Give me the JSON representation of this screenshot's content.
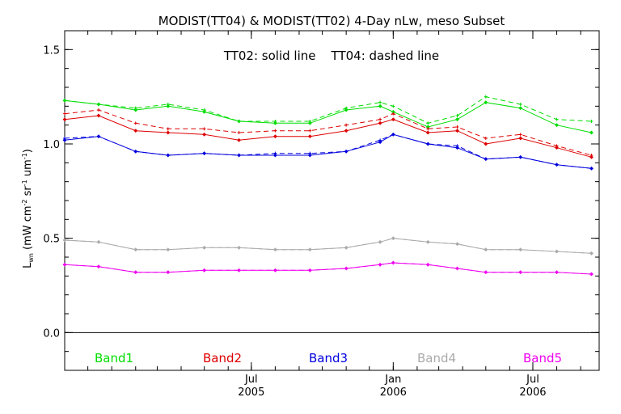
{
  "chart_data": {
    "type": "line",
    "title": "MODIST(TT04) & MODIST(TT02) 4-Day nLw, meso Subset",
    "annotation": "TT02: solid line    TT04: dashed line",
    "ylabel": {
      "main": "L",
      "sub": "wn",
      "units": "(mW cm",
      "e1": "-2",
      "sr": " sr",
      "e2": "-1",
      "um": " um",
      "e3": "-1",
      "close": ")"
    },
    "xlabel": "",
    "ylim": [
      -0.2,
      1.6
    ],
    "yticks": [
      0.0,
      0.5,
      1.0,
      1.5
    ],
    "ytick_labels": [
      "0.0",
      "0.5",
      "1.0",
      "1.5"
    ],
    "xrange": [
      "2004-11-01",
      "2006-09-25"
    ],
    "xticks": [
      {
        "date": "2005-07-01",
        "month": "Jul",
        "year": "2005"
      },
      {
        "date": "2006-01-01",
        "month": "Jan",
        "year": "2006"
      },
      {
        "date": "2006-07-01",
        "month": "Jul",
        "year": "2006"
      }
    ],
    "zero_line": 0.0,
    "x": [
      "2004-11-01",
      "2004-12-15",
      "2005-02-01",
      "2005-03-15",
      "2005-05-01",
      "2005-06-15",
      "2005-08-01",
      "2005-09-15",
      "2005-11-01",
      "2005-12-15",
      "2006-01-01",
      "2006-02-15",
      "2006-03-25",
      "2006-05-01",
      "2006-06-15",
      "2006-08-01",
      "2006-09-15"
    ],
    "x_tt04": [
      "2004-11-01",
      "2004-12-15",
      "2005-02-01",
      "2005-03-15",
      "2005-05-01",
      "2005-06-15",
      "2005-08-01",
      "2005-09-15",
      "2005-11-01",
      "2005-12-15",
      "2006-01-01",
      "2006-02-15",
      "2006-03-25",
      "2006-05-01",
      "2006-06-15",
      "2006-08-01",
      "2006-09-15"
    ],
    "series": [
      {
        "name": "Band1",
        "color": "#00dd00",
        "tt02": [
          1.23,
          1.21,
          1.18,
          1.2,
          1.17,
          1.12,
          1.11,
          1.11,
          1.18,
          1.2,
          1.17,
          1.09,
          1.13,
          1.22,
          1.19,
          1.1,
          1.06
        ],
        "tt04": [
          1.23,
          1.21,
          1.19,
          1.21,
          1.18,
          1.12,
          1.12,
          1.12,
          1.19,
          1.22,
          1.2,
          1.11,
          1.15,
          1.25,
          1.21,
          1.13,
          1.12
        ]
      },
      {
        "name": "Band2",
        "color": "#dd0000",
        "tt02": [
          1.13,
          1.15,
          1.07,
          1.06,
          1.05,
          1.02,
          1.04,
          1.04,
          1.07,
          1.11,
          1.13,
          1.06,
          1.07,
          1.0,
          1.03,
          0.98,
          0.93
        ],
        "tt04": [
          1.16,
          1.18,
          1.11,
          1.08,
          1.08,
          1.06,
          1.07,
          1.07,
          1.1,
          1.13,
          1.16,
          1.08,
          1.09,
          1.03,
          1.05,
          0.99,
          0.94
        ]
      },
      {
        "name": "Band3",
        "color": "#0000dd",
        "tt02": [
          1.02,
          1.04,
          0.96,
          0.94,
          0.95,
          0.94,
          0.94,
          0.94,
          0.96,
          1.01,
          1.05,
          1.0,
          0.98,
          0.92,
          0.93,
          0.89,
          0.87
        ],
        "tt04": [
          1.03,
          1.04,
          0.96,
          0.94,
          0.95,
          0.94,
          0.95,
          0.95,
          0.96,
          1.02,
          1.05,
          1.0,
          0.99,
          0.92,
          0.93,
          0.89,
          0.87
        ]
      },
      {
        "name": "Band4",
        "color": "#aaaaaa",
        "tt02": [
          0.49,
          0.48,
          0.44,
          0.44,
          0.45,
          0.45,
          0.44,
          0.44,
          0.45,
          0.48,
          0.5,
          0.48,
          0.47,
          0.44,
          0.44,
          0.43,
          0.42
        ],
        "tt04": [
          0.49,
          0.48,
          0.44,
          0.44,
          0.45,
          0.45,
          0.44,
          0.44,
          0.45,
          0.48,
          0.5,
          0.48,
          0.47,
          0.44,
          0.44,
          0.43,
          0.42
        ]
      },
      {
        "name": "Band5",
        "color": "#ee00ee",
        "tt02": [
          0.36,
          0.35,
          0.32,
          0.32,
          0.33,
          0.33,
          0.33,
          0.33,
          0.34,
          0.36,
          0.37,
          0.36,
          0.34,
          0.32,
          0.32,
          0.32,
          0.31
        ],
        "tt04": [
          0.36,
          0.35,
          0.32,
          0.32,
          0.33,
          0.33,
          0.33,
          0.33,
          0.34,
          0.36,
          0.37,
          0.36,
          0.34,
          0.32,
          0.32,
          0.32,
          0.31
        ]
      }
    ],
    "legend_placement": "bottom-inside"
  }
}
